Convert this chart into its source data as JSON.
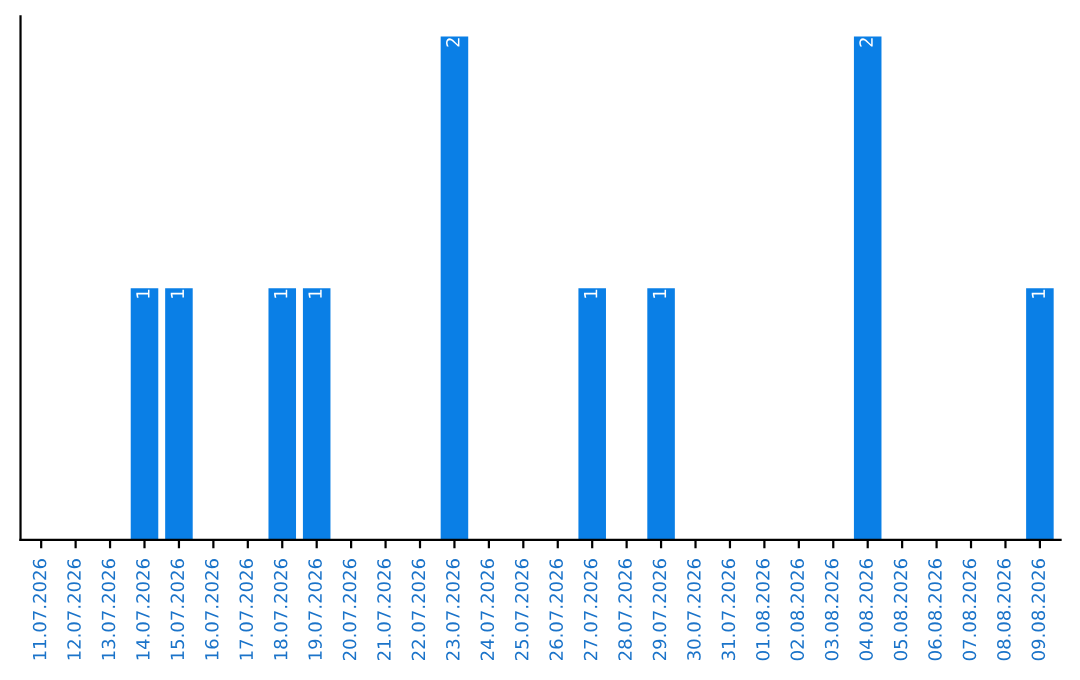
{
  "chart_data": {
    "type": "bar",
    "categories": [
      "11.07.2026",
      "12.07.2026",
      "13.07.2026",
      "14.07.2026",
      "15.07.2026",
      "16.07.2026",
      "17.07.2026",
      "18.07.2026",
      "19.07.2026",
      "20.07.2026",
      "21.07.2026",
      "22.07.2026",
      "23.07.2026",
      "24.07.2026",
      "25.07.2026",
      "26.07.2026",
      "27.07.2026",
      "28.07.2026",
      "29.07.2026",
      "30.07.2026",
      "31.07.2026",
      "01.08.2026",
      "02.08.2026",
      "03.08.2026",
      "04.08.2026",
      "05.08.2026",
      "06.08.2026",
      "07.08.2026",
      "08.08.2026",
      "09.08.2026"
    ],
    "values": [
      0,
      0,
      0,
      1,
      1,
      0,
      0,
      1,
      1,
      0,
      0,
      0,
      2,
      0,
      0,
      0,
      1,
      0,
      1,
      0,
      0,
      0,
      0,
      0,
      2,
      0,
      0,
      0,
      0,
      1
    ],
    "color": "#0a7fe6",
    "value_labels": [
      null,
      null,
      null,
      "1",
      "1",
      null,
      null,
      "1",
      "1",
      null,
      null,
      null,
      "2",
      null,
      null,
      null,
      "1",
      null,
      "1",
      null,
      null,
      null,
      null,
      null,
      "2",
      null,
      null,
      null,
      null,
      "1"
    ],
    "tick_labels": "x",
    "grid": false,
    "legend": false
  }
}
